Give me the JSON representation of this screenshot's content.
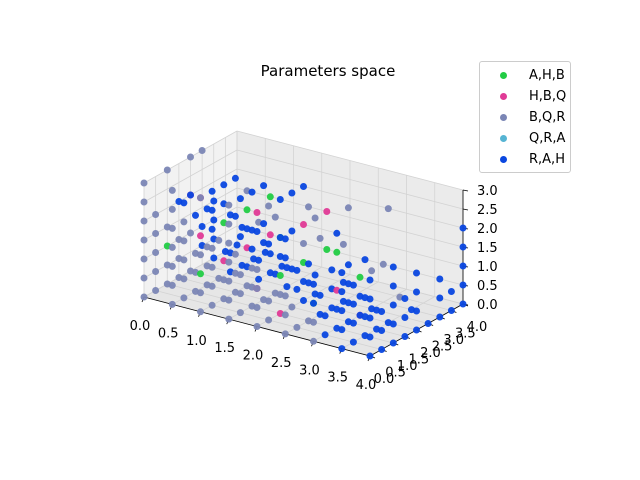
{
  "chart_data": {
    "type": "scatter",
    "projection": "3d",
    "title": "Parameters space",
    "legend_position": "top-right",
    "grid": true,
    "axes": {
      "x": {
        "range": [
          0,
          4
        ],
        "ticks": [
          "0.0",
          "0.5",
          "1.0",
          "1.5",
          "2.0",
          "2.5",
          "3.0",
          "3.5",
          "4.0"
        ]
      },
      "y": {
        "range": [
          0,
          4
        ],
        "ticks": [
          "0.0",
          "0.5",
          "1.0",
          "1.5",
          "2.0",
          "2.5",
          "3.0",
          "3.5",
          "4.0"
        ]
      },
      "z": {
        "range": [
          0,
          3
        ],
        "ticks": [
          "0.0",
          "0.5",
          "1.0",
          "1.5",
          "2.0",
          "2.5",
          "3.0"
        ]
      }
    },
    "series": [
      {
        "name": "A,H,B",
        "color": "#22cc44",
        "points": [
          [
            1,
            0,
            1
          ],
          [
            1,
            1,
            2
          ],
          [
            2,
            1,
            1
          ],
          [
            2,
            2,
            1
          ],
          [
            1,
            2,
            2
          ],
          [
            3,
            1,
            2
          ],
          [
            3,
            2,
            1
          ],
          [
            2,
            3,
            1
          ],
          [
            0,
            1,
            1
          ],
          [
            1,
            3,
            2
          ],
          [
            2,
            1,
            2
          ],
          [
            3,
            0,
            1
          ]
        ]
      },
      {
        "name": "H,B,Q",
        "color": "#e03a96",
        "points": [
          [
            1,
            0,
            2
          ],
          [
            2,
            0,
            1
          ],
          [
            1,
            1,
            1
          ],
          [
            2,
            1,
            0
          ],
          [
            1,
            2,
            1
          ],
          [
            2,
            2,
            2
          ],
          [
            3,
            1,
            1
          ],
          [
            0,
            2,
            2
          ],
          [
            1,
            3,
            1
          ],
          [
            2,
            3,
            2
          ],
          [
            3,
            2,
            0
          ],
          [
            1,
            0,
            3
          ],
          [
            2,
            0,
            3
          ]
        ]
      },
      {
        "name": "B,Q,R",
        "color": "#7b86b5",
        "points": [
          [
            0,
            0,
            0
          ],
          [
            0.5,
            0,
            0
          ],
          [
            1,
            0,
            0
          ],
          [
            1.5,
            0,
            0
          ],
          [
            2,
            0,
            0
          ],
          [
            2.5,
            0,
            0
          ],
          [
            3,
            0,
            0
          ],
          [
            0,
            0.5,
            0
          ],
          [
            0.5,
            0.5,
            0
          ],
          [
            1,
            0.5,
            0
          ],
          [
            1.5,
            0.5,
            0
          ],
          [
            2,
            0.5,
            0
          ],
          [
            2.5,
            0.5,
            0
          ],
          [
            0,
            1,
            0
          ],
          [
            0.5,
            1,
            0
          ],
          [
            1,
            1,
            0
          ],
          [
            1.5,
            1,
            0
          ],
          [
            2,
            1,
            0.5
          ],
          [
            2.5,
            1,
            0
          ],
          [
            0,
            1.5,
            0
          ],
          [
            0.5,
            1.5,
            0
          ],
          [
            1,
            1.5,
            0
          ],
          [
            1.5,
            1.5,
            0
          ],
          [
            2,
            1.5,
            0
          ],
          [
            0,
            2,
            0
          ],
          [
            0.5,
            2,
            0
          ],
          [
            1,
            2,
            0
          ],
          [
            1.5,
            2,
            0
          ],
          [
            0,
            0,
            0.5
          ],
          [
            0.5,
            0,
            0.5
          ],
          [
            1,
            0,
            0.5
          ],
          [
            1.5,
            0,
            0.5
          ],
          [
            2,
            0,
            0.5
          ],
          [
            2.5,
            0,
            0.5
          ],
          [
            3,
            0,
            0.5
          ],
          [
            0,
            0.5,
            0.5
          ],
          [
            0.5,
            0.5,
            0.5
          ],
          [
            1,
            0.5,
            0.5
          ],
          [
            1.5,
            0.5,
            0.5
          ],
          [
            2,
            0.5,
            0.5
          ],
          [
            0,
            1,
            0.5
          ],
          [
            0.5,
            1,
            0.5
          ],
          [
            1,
            1,
            0.5
          ],
          [
            1.5,
            1,
            0.5
          ],
          [
            0,
            1.5,
            0.5
          ],
          [
            0.5,
            1.5,
            0.5
          ],
          [
            1,
            1.5,
            0.5
          ],
          [
            0,
            0,
            1
          ],
          [
            0.5,
            0,
            1
          ],
          [
            1.5,
            0,
            1
          ],
          [
            2,
            0,
            1
          ],
          [
            2.5,
            0,
            1
          ],
          [
            0,
            0.5,
            1
          ],
          [
            0.5,
            0.5,
            1
          ],
          [
            1,
            0.5,
            1
          ],
          [
            1.5,
            0.5,
            1
          ],
          [
            0,
            1,
            1.5
          ],
          [
            0.5,
            1,
            1
          ],
          [
            1.5,
            1,
            1
          ],
          [
            0,
            1.5,
            1
          ],
          [
            0.5,
            1.5,
            1
          ],
          [
            1,
            1.5,
            1
          ],
          [
            0,
            2,
            1
          ],
          [
            0.5,
            2,
            1
          ],
          [
            0,
            0,
            1.5
          ],
          [
            0.5,
            0,
            1.5
          ],
          [
            1,
            0,
            1.5
          ],
          [
            1.5,
            0,
            1.5
          ],
          [
            2,
            0,
            1.5
          ],
          [
            0,
            0.5,
            1.5
          ],
          [
            0.5,
            0.5,
            1.5
          ],
          [
            1,
            0.5,
            1.5
          ],
          [
            0,
            0,
            2
          ],
          [
            0.5,
            0,
            2
          ],
          [
            1.5,
            0,
            2
          ],
          [
            0,
            0.5,
            2
          ],
          [
            0.5,
            0.5,
            2
          ],
          [
            0,
            0,
            2.5
          ],
          [
            0.5,
            0,
            2.5
          ],
          [
            1.5,
            0,
            2.5
          ],
          [
            0,
            0,
            3
          ],
          [
            0.5,
            0,
            3
          ],
          [
            1,
            0,
            3
          ],
          [
            1.5,
            0,
            3
          ],
          [
            2,
            0.5,
            3
          ],
          [
            2.5,
            1,
            3
          ],
          [
            3,
            1.5,
            3
          ],
          [
            3.5,
            2,
            3
          ],
          [
            0,
            1,
            3
          ],
          [
            0,
            2,
            3
          ],
          [
            0,
            2.5,
            3
          ],
          [
            1,
            2,
            2.5
          ],
          [
            2,
            2.5,
            2
          ],
          [
            2.5,
            2.5,
            1.5
          ],
          [
            3,
            2.5,
            1
          ],
          [
            3,
            3,
            1
          ],
          [
            3.5,
            2.5,
            0.5
          ],
          [
            2,
            2,
            1.5
          ],
          [
            1.5,
            2,
            2
          ],
          [
            1,
            2.5,
            1.5
          ],
          [
            2.5,
            1.5,
            2
          ]
        ]
      },
      {
        "name": "Q,R,A",
        "color": "#56b4d3",
        "points": []
      },
      {
        "name": "R,A,H",
        "color": "#0a47e0",
        "points": [
          [
            3.5,
            0,
            0
          ],
          [
            4,
            0,
            0
          ],
          [
            3.5,
            0.5,
            0
          ],
          [
            4,
            0.5,
            0
          ],
          [
            3,
            1,
            0
          ],
          [
            3.5,
            1,
            0
          ],
          [
            4,
            1,
            0
          ],
          [
            3,
            1.5,
            0
          ],
          [
            3.5,
            1.5,
            0
          ],
          [
            4,
            1.5,
            0
          ],
          [
            2.5,
            2,
            0
          ],
          [
            3,
            2,
            0
          ],
          [
            3.5,
            2,
            0
          ],
          [
            4,
            2,
            0
          ],
          [
            2,
            2.5,
            0
          ],
          [
            2.5,
            2.5,
            0
          ],
          [
            3,
            2.5,
            0
          ],
          [
            4,
            2.5,
            0
          ],
          [
            3.5,
            3,
            0
          ],
          [
            4,
            3,
            0
          ],
          [
            4,
            3.5,
            0
          ],
          [
            4,
            4,
            0
          ],
          [
            3.5,
            0,
            0.5
          ],
          [
            4,
            0,
            0.5
          ],
          [
            3.5,
            0.5,
            0.5
          ],
          [
            4,
            0.5,
            0.5
          ],
          [
            3,
            1,
            0.5
          ],
          [
            3.5,
            1,
            0.5
          ],
          [
            4,
            1,
            0.5
          ],
          [
            3,
            1.5,
            0.5
          ],
          [
            3.5,
            1.5,
            0.5
          ],
          [
            4,
            1.5,
            0.5
          ],
          [
            2.5,
            2,
            0.5
          ],
          [
            3,
            2,
            0.5
          ],
          [
            4,
            2,
            0.5
          ],
          [
            2.5,
            2.5,
            0.5
          ],
          [
            4,
            3,
            0.5
          ],
          [
            4,
            3.5,
            0.5
          ],
          [
            4,
            4,
            0.5
          ],
          [
            3.5,
            0,
            1
          ],
          [
            4,
            0,
            1
          ],
          [
            3.5,
            0.5,
            1
          ],
          [
            4,
            0.5,
            1
          ],
          [
            3.5,
            1,
            1
          ],
          [
            4,
            1,
            1
          ],
          [
            3,
            1.5,
            1
          ],
          [
            4,
            1.5,
            1
          ],
          [
            2.5,
            2,
            1
          ],
          [
            4,
            2,
            1
          ],
          [
            4,
            3,
            1
          ],
          [
            4,
            4,
            1
          ],
          [
            3.5,
            0,
            1.5
          ],
          [
            4,
            0,
            1.5
          ],
          [
            3.5,
            0.5,
            1.5
          ],
          [
            4,
            1,
            1.5
          ],
          [
            3,
            1.5,
            1.5
          ],
          [
            4,
            2,
            1.5
          ],
          [
            4,
            4,
            1.5
          ],
          [
            3.5,
            0,
            2
          ],
          [
            4,
            0,
            2
          ],
          [
            4,
            1,
            2
          ],
          [
            3,
            1,
            2.5
          ],
          [
            3.5,
            1,
            2
          ],
          [
            4,
            4,
            2
          ],
          [
            2.5,
            0,
            2
          ],
          [
            3,
            0,
            1.5
          ],
          [
            2.5,
            0.5,
            1.5
          ],
          [
            2.5,
            1,
            1.5
          ],
          [
            2,
            1,
            2
          ],
          [
            1.5,
            1,
            2
          ],
          [
            1,
            1,
            2.5
          ],
          [
            0.5,
            1,
            2
          ],
          [
            1,
            0.5,
            2
          ],
          [
            1.5,
            0.5,
            2
          ],
          [
            2,
            0.5,
            2
          ],
          [
            0,
            2,
            2
          ],
          [
            0,
            1.5,
            2
          ],
          [
            0.5,
            1.5,
            2
          ],
          [
            1,
            1.5,
            2
          ],
          [
            1.5,
            1.5,
            2
          ],
          [
            2,
            1.5,
            2
          ],
          [
            1.5,
            1,
            1.5
          ],
          [
            2,
            1,
            1.5
          ],
          [
            0,
            2.5,
            1
          ],
          [
            0,
            2.5,
            0.5
          ],
          [
            0,
            3,
            0.5
          ],
          [
            0,
            3,
            0
          ],
          [
            0.5,
            2.5,
            0
          ],
          [
            0.5,
            2.5,
            0.5
          ],
          [
            0.5,
            3,
            0
          ],
          [
            1,
            2.5,
            0
          ],
          [
            1,
            3,
            0
          ],
          [
            1.5,
            2.5,
            0
          ],
          [
            1,
            2.5,
            0.5
          ],
          [
            0,
            3.5,
            0
          ],
          [
            0.5,
            3.5,
            0
          ],
          [
            0,
            4,
            0
          ],
          [
            0.5,
            4,
            0
          ],
          [
            1,
            3.5,
            0
          ],
          [
            1,
            2,
            0.5
          ],
          [
            1.5,
            2,
            0.5
          ],
          [
            2,
            2,
            0.5
          ],
          [
            2,
            2,
            0
          ],
          [
            2.5,
            1.5,
            0
          ],
          [
            2.5,
            1.5,
            0.5
          ],
          [
            3,
            0.5,
            0
          ],
          [
            3,
            0.5,
            0.5
          ],
          [
            3,
            0,
            1
          ],
          [
            2.5,
            0.5,
            1
          ],
          [
            2.5,
            1,
            1
          ],
          [
            2,
            1.5,
            1
          ],
          [
            1.5,
            1.5,
            1.5
          ],
          [
            1,
            2,
            1.5
          ],
          [
            0.5,
            2.5,
            1.5
          ],
          [
            0,
            3,
            1.5
          ],
          [
            0,
            3,
            1
          ],
          [
            0.5,
            3,
            1
          ],
          [
            1,
            3,
            0.5
          ],
          [
            1.5,
            2.5,
            0.5
          ],
          [
            2,
            2.5,
            0.5
          ],
          [
            1,
            1,
            3
          ],
          [
            1.5,
            1,
            3
          ],
          [
            2,
            1,
            3
          ],
          [
            1.5,
            0.5,
            3
          ],
          [
            1,
            0.5,
            3
          ],
          [
            2,
            1.5,
            3
          ],
          [
            2,
            2,
            3
          ],
          [
            1.5,
            1.5,
            3
          ],
          [
            1,
            1.5,
            3
          ],
          [
            0.5,
            0.5,
            2.5
          ],
          [
            1,
            0.5,
            2.5
          ],
          [
            2,
            0,
            2.5
          ],
          [
            2.5,
            0,
            2.5
          ]
        ]
      }
    ]
  }
}
